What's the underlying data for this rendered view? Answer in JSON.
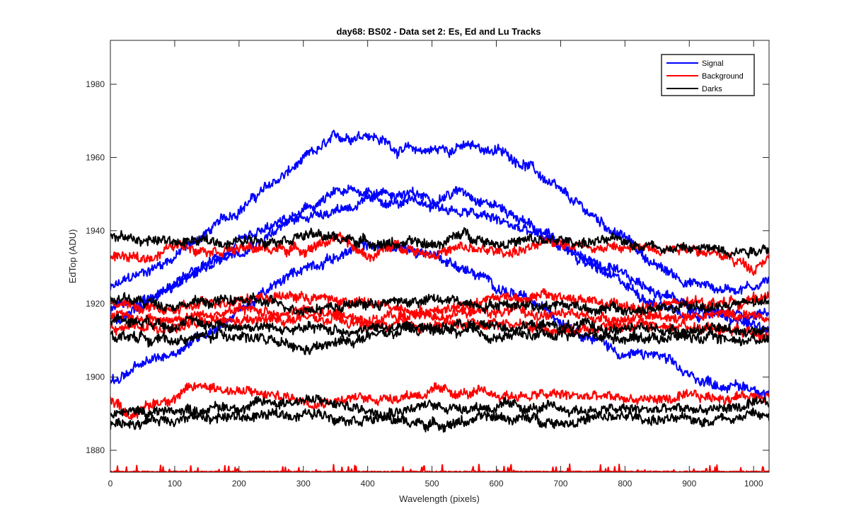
{
  "chart_data": {
    "type": "line",
    "title": "day68: BS02 - Data set 2: Es, Ed and Lu Tracks",
    "xlabel": "Wavelength (pixels)",
    "ylabel": "EdTop (ADU)",
    "xlim": [
      0,
      1024
    ],
    "ylim": [
      1874,
      1992
    ],
    "xticks": [
      0,
      100,
      200,
      300,
      400,
      500,
      600,
      700,
      800,
      900,
      1000
    ],
    "yticks": [
      1880,
      1900,
      1920,
      1940,
      1960,
      1980
    ],
    "grid": false,
    "legend_position": "top-right",
    "legend": [
      {
        "label": "Signal",
        "color": "#0000ff"
      },
      {
        "label": "Background",
        "color": "#ff0000"
      },
      {
        "label": "Darks",
        "color": "#000000"
      }
    ],
    "series": [
      {
        "group": "Signal",
        "color": "#0000ff",
        "points": [
          [
            0,
            1924
          ],
          [
            100,
            1933
          ],
          [
            200,
            1946
          ],
          [
            300,
            1959
          ],
          [
            350,
            1965
          ],
          [
            400,
            1967
          ],
          [
            450,
            1962
          ],
          [
            500,
            1962
          ],
          [
            550,
            1963
          ],
          [
            600,
            1962
          ],
          [
            650,
            1958
          ],
          [
            700,
            1950
          ],
          [
            750,
            1944
          ],
          [
            800,
            1938
          ],
          [
            850,
            1930
          ],
          [
            900,
            1926
          ],
          [
            950,
            1924
          ],
          [
            1000,
            1925
          ],
          [
            1024,
            1927
          ]
        ]
      },
      {
        "group": "Signal",
        "color": "#0000ff",
        "points": [
          [
            0,
            1915
          ],
          [
            100,
            1925
          ],
          [
            200,
            1936
          ],
          [
            300,
            1945
          ],
          [
            350,
            1950
          ],
          [
            400,
            1951
          ],
          [
            450,
            1950
          ],
          [
            500,
            1949
          ],
          [
            550,
            1951
          ],
          [
            600,
            1947
          ],
          [
            650,
            1942
          ],
          [
            700,
            1936
          ],
          [
            750,
            1930
          ],
          [
            800,
            1925
          ],
          [
            850,
            1920
          ],
          [
            900,
            1918
          ],
          [
            950,
            1917
          ],
          [
            1000,
            1917
          ],
          [
            1024,
            1918
          ]
        ]
      },
      {
        "group": "Signal",
        "color": "#0000ff",
        "points": [
          [
            0,
            1899
          ],
          [
            100,
            1907
          ],
          [
            200,
            1918
          ],
          [
            300,
            1930
          ],
          [
            400,
            1936
          ],
          [
            500,
            1934
          ],
          [
            600,
            1925
          ],
          [
            700,
            1916
          ],
          [
            800,
            1906
          ],
          [
            850,
            1906
          ],
          [
            900,
            1900
          ],
          [
            950,
            1898
          ],
          [
            1000,
            1897
          ],
          [
            1024,
            1896
          ]
        ]
      },
      {
        "group": "Signal",
        "color": "#0000ff",
        "points": [
          [
            0,
            1918
          ],
          [
            100,
            1925
          ],
          [
            200,
            1935
          ],
          [
            300,
            1944
          ],
          [
            400,
            1948
          ],
          [
            500,
            1947
          ],
          [
            600,
            1943
          ],
          [
            700,
            1936
          ],
          [
            800,
            1927
          ],
          [
            900,
            1920
          ],
          [
            1000,
            1914
          ],
          [
            1024,
            1913
          ]
        ]
      },
      {
        "group": "Background",
        "color": "#ff0000",
        "points": [
          [
            0,
            1933
          ],
          [
            50,
            1932
          ],
          [
            100,
            1936
          ],
          [
            200,
            1935
          ],
          [
            300,
            1935
          ],
          [
            350,
            1938
          ],
          [
            400,
            1933
          ],
          [
            450,
            1936
          ],
          [
            500,
            1934
          ],
          [
            550,
            1935
          ],
          [
            600,
            1934
          ],
          [
            650,
            1935
          ],
          [
            700,
            1937
          ],
          [
            800,
            1935
          ],
          [
            900,
            1936
          ],
          [
            950,
            1933
          ],
          [
            1000,
            1930
          ],
          [
            1024,
            1934
          ]
        ]
      },
      {
        "group": "Background",
        "color": "#ff0000",
        "points": [
          [
            0,
            1920
          ],
          [
            100,
            1918
          ],
          [
            200,
            1922
          ],
          [
            300,
            1922
          ],
          [
            400,
            1920
          ],
          [
            500,
            1918
          ],
          [
            600,
            1922
          ],
          [
            700,
            1922
          ],
          [
            800,
            1919
          ],
          [
            900,
            1920
          ],
          [
            1000,
            1921
          ],
          [
            1024,
            1923
          ]
        ]
      },
      {
        "group": "Background",
        "color": "#ff0000",
        "points": [
          [
            0,
            1913
          ],
          [
            100,
            1914
          ],
          [
            200,
            1915
          ],
          [
            300,
            1916
          ],
          [
            400,
            1914
          ],
          [
            500,
            1914
          ],
          [
            600,
            1915
          ],
          [
            700,
            1913
          ],
          [
            800,
            1914
          ],
          [
            900,
            1914
          ],
          [
            1000,
            1913
          ],
          [
            1024,
            1913
          ]
        ]
      },
      {
        "group": "Background",
        "color": "#ff0000",
        "points": [
          [
            0,
            1916
          ],
          [
            100,
            1916
          ],
          [
            200,
            1918
          ],
          [
            300,
            1918
          ],
          [
            400,
            1916
          ],
          [
            500,
            1917
          ],
          [
            600,
            1918
          ],
          [
            700,
            1917
          ],
          [
            800,
            1916
          ],
          [
            900,
            1917
          ],
          [
            1000,
            1917
          ],
          [
            1024,
            1916
          ]
        ]
      },
      {
        "group": "Background",
        "color": "#ff0000",
        "points": [
          [
            0,
            1894
          ],
          [
            30,
            1890
          ],
          [
            100,
            1895
          ],
          [
            150,
            1898
          ],
          [
            200,
            1896
          ],
          [
            300,
            1894
          ],
          [
            400,
            1894
          ],
          [
            500,
            1896
          ],
          [
            600,
            1895
          ],
          [
            700,
            1895
          ],
          [
            800,
            1894
          ],
          [
            900,
            1894
          ],
          [
            1000,
            1895
          ],
          [
            1024,
            1896
          ]
        ]
      },
      {
        "group": "Darks",
        "color": "#000000",
        "points": [
          [
            0,
            1938
          ],
          [
            100,
            1937
          ],
          [
            200,
            1937
          ],
          [
            300,
            1939
          ],
          [
            400,
            1937
          ],
          [
            500,
            1936
          ],
          [
            550,
            1939
          ],
          [
            600,
            1937
          ],
          [
            700,
            1937
          ],
          [
            800,
            1937
          ],
          [
            900,
            1935
          ],
          [
            1000,
            1935
          ],
          [
            1024,
            1936
          ]
        ]
      },
      {
        "group": "Darks",
        "color": "#000000",
        "points": [
          [
            0,
            1921
          ],
          [
            100,
            1920
          ],
          [
            200,
            1921
          ],
          [
            300,
            1919
          ],
          [
            400,
            1920
          ],
          [
            500,
            1921
          ],
          [
            600,
            1920
          ],
          [
            700,
            1920
          ],
          [
            800,
            1918
          ],
          [
            900,
            1919
          ],
          [
            1000,
            1920
          ],
          [
            1024,
            1920
          ]
        ]
      },
      {
        "group": "Darks",
        "color": "#000000",
        "points": [
          [
            0,
            1912
          ],
          [
            100,
            1910
          ],
          [
            200,
            1912
          ],
          [
            300,
            1907
          ],
          [
            400,
            1911
          ],
          [
            500,
            1913
          ],
          [
            600,
            1911
          ],
          [
            700,
            1912
          ],
          [
            800,
            1911
          ],
          [
            900,
            1911
          ],
          [
            1000,
            1910
          ],
          [
            1024,
            1911
          ]
        ]
      },
      {
        "group": "Darks",
        "color": "#000000",
        "points": [
          [
            0,
            1916
          ],
          [
            100,
            1915
          ],
          [
            200,
            1914
          ],
          [
            300,
            1913
          ],
          [
            400,
            1913
          ],
          [
            500,
            1914
          ],
          [
            600,
            1914
          ],
          [
            700,
            1914
          ],
          [
            800,
            1913
          ],
          [
            900,
            1913
          ],
          [
            1000,
            1913
          ],
          [
            1024,
            1913
          ]
        ]
      },
      {
        "group": "Darks",
        "color": "#000000",
        "points": [
          [
            0,
            1890
          ],
          [
            100,
            1891
          ],
          [
            200,
            1892
          ],
          [
            300,
            1894
          ],
          [
            400,
            1891
          ],
          [
            500,
            1892
          ],
          [
            600,
            1892
          ],
          [
            700,
            1891
          ],
          [
            800,
            1891
          ],
          [
            900,
            1891
          ],
          [
            1000,
            1892
          ],
          [
            1024,
            1892
          ]
        ]
      },
      {
        "group": "Darks",
        "color": "#000000",
        "points": [
          [
            0,
            1887
          ],
          [
            100,
            1889
          ],
          [
            200,
            1889
          ],
          [
            300,
            1890
          ],
          [
            400,
            1889
          ],
          [
            500,
            1887
          ],
          [
            600,
            1889
          ],
          [
            700,
            1888
          ],
          [
            800,
            1889
          ],
          [
            900,
            1888
          ],
          [
            1000,
            1890
          ],
          [
            1024,
            1889
          ]
        ]
      },
      {
        "group": "Background",
        "color": "#ff0000",
        "points": [
          [
            0,
            1874
          ],
          [
            1024,
            1874
          ]
        ]
      }
    ]
  }
}
